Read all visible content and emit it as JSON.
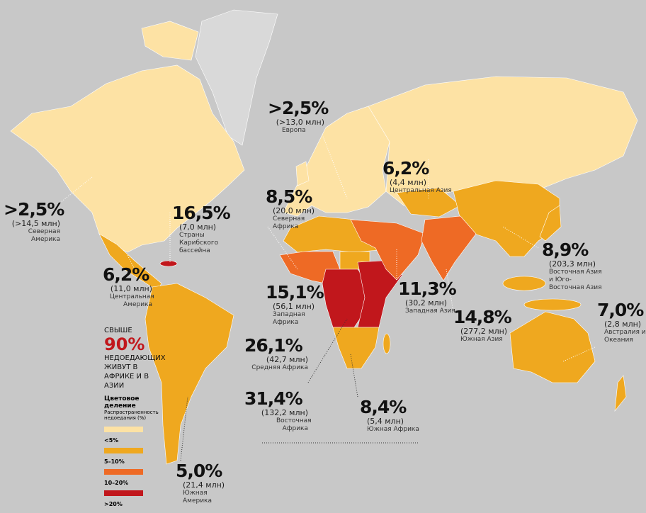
{
  "regions": [
    {
      "percent": ">2,5%",
      "people": "(>14,5 млн)",
      "name": "Северная Америка"
    },
    {
      "percent": "16,5%",
      "people": "(7,0 млн)",
      "name": "Страны Карибского бассейна"
    },
    {
      "percent": "6,2%",
      "people": "(11,0 млн)",
      "name": "Центральная Америка"
    },
    {
      "percent": ">2,5%",
      "people": "(>13,0 млн)",
      "name": "Европа"
    },
    {
      "percent": "6,2%",
      "people": "(4,4 млн)",
      "name": "Центральная Азия"
    },
    {
      "percent": "8,5%",
      "people": "(20,0 млн)",
      "name": "Северная Африка"
    },
    {
      "percent": "8,9%",
      "people": "(203,3 млн)",
      "name": "Восточная Азия и Юго-Восточная Азия"
    },
    {
      "percent": "15,1%",
      "people": "(56,1 млн)",
      "name": "Западная Африка"
    },
    {
      "percent": "11,3%",
      "people": "(30,2 млн)",
      "name": "Западная Азия"
    },
    {
      "percent": "14,8%",
      "people": "(277,2 млн)",
      "name": "Южная Азия"
    },
    {
      "percent": "7,0%",
      "people": "(2,8 млн)",
      "name": "Австралия и Океания"
    },
    {
      "percent": "26,1%",
      "people": "(42,7 млн)",
      "name": "Средняя Африка"
    },
    {
      "percent": "31,4%",
      "people": "(132,2 млн)",
      "name": "Восточная Африка"
    },
    {
      "percent": "8,4%",
      "people": "(5,4 млн)",
      "name": "Южная Африка"
    },
    {
      "percent": "5,0%",
      "people": "(21,4 млн)",
      "name": "Южная Америка"
    }
  ],
  "note": {
    "lead": "СВЫШЕ",
    "figure": "90%",
    "text": "НЕДОЕДАЮЩИХ ЖИВУТ В АФРИКЕ И В АЗИИ"
  },
  "legend": {
    "title": "Цветовое деление",
    "subtitle": "Распространенность недоедания (%)",
    "items": [
      {
        "label": "<5%",
        "color": "#fde2a4"
      },
      {
        "label": "5–10%",
        "color": "#efa81f"
      },
      {
        "label": "10–20%",
        "color": "#ee6a25"
      },
      {
        "label": ">20%",
        "color": "#c1171c"
      }
    ]
  }
}
